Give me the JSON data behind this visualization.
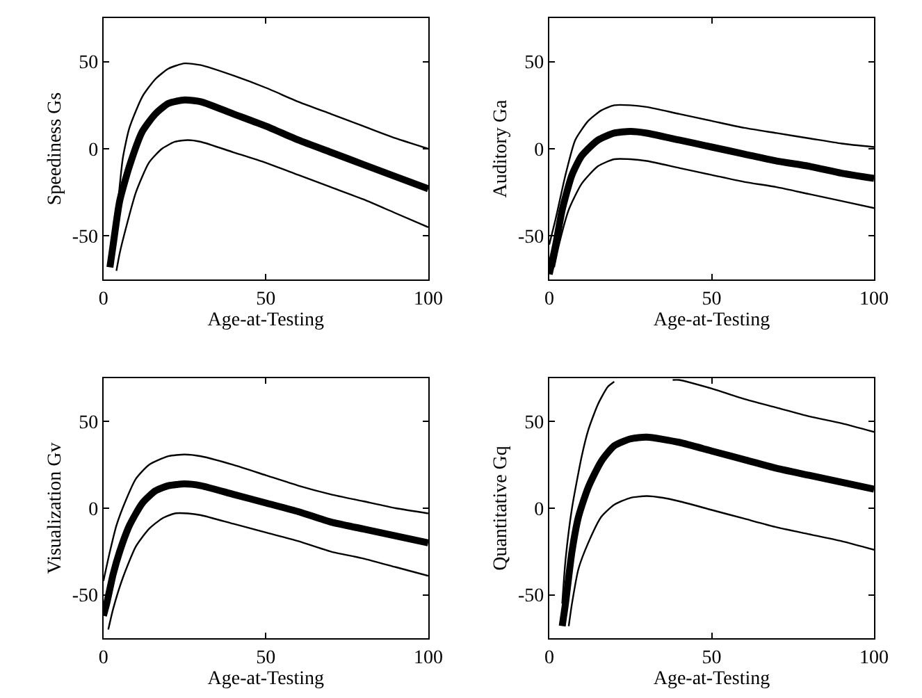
{
  "chart_data": [
    {
      "type": "line",
      "xlabel": "Age-at-Testing",
      "ylabel": "Speediness Gs",
      "xlim": [
        0,
        100
      ],
      "ylim": [
        -75,
        75
      ],
      "xticks": [
        0,
        50,
        100
      ],
      "yticks": [
        -50,
        0,
        50
      ],
      "series": [
        {
          "color": "#000000",
          "x": [
            2,
            3,
            5,
            8,
            12,
            16,
            20,
            25,
            30,
            40,
            50,
            60,
            70,
            80,
            90,
            100
          ],
          "values": [
            -68,
            -55,
            -30,
            -10,
            10,
            20,
            26,
            28,
            27,
            20,
            13,
            5,
            -2,
            -9,
            -16,
            -23
          ]
        },
        {
          "color": "#000000",
          "x": [
            2.5,
            4,
            6,
            8,
            12,
            16,
            20,
            25,
            30,
            40,
            50,
            60,
            70,
            80,
            90,
            100
          ],
          "values": [
            -65,
            -40,
            -5,
            12,
            30,
            40,
            46,
            49,
            48,
            42,
            35,
            27,
            20,
            13,
            6,
            0
          ]
        },
        {
          "color": "#000000",
          "x": [
            4,
            5,
            7,
            10,
            14,
            18,
            22,
            26,
            30,
            40,
            50,
            60,
            70,
            80,
            90,
            100
          ],
          "values": [
            -70,
            -60,
            -45,
            -25,
            -8,
            0,
            4,
            5,
            4,
            -2,
            -8,
            -15,
            -22,
            -29,
            -37,
            -45
          ]
        }
      ]
    },
    {
      "type": "line",
      "xlabel": "Age-at-Testing",
      "ylabel": "Auditory Ga",
      "xlim": [
        0,
        100
      ],
      "ylim": [
        -75,
        75
      ],
      "xticks": [
        0,
        50,
        100
      ],
      "yticks": [
        -50,
        0,
        50
      ],
      "series": [
        {
          "color": "#000000",
          "x": [
            0,
            2,
            4,
            7,
            10,
            15,
            20,
            25,
            30,
            40,
            50,
            60,
            70,
            80,
            90,
            100
          ],
          "values": [
            -72,
            -55,
            -35,
            -15,
            -4,
            5,
            9,
            10,
            9,
            5,
            1,
            -3,
            -7,
            -10,
            -14,
            -17
          ]
        },
        {
          "color": "#000000",
          "x": [
            0,
            2,
            5,
            8,
            12,
            16,
            20,
            25,
            30,
            40,
            50,
            60,
            70,
            80,
            90,
            100
          ],
          "values": [
            -55,
            -40,
            -15,
            5,
            16,
            22,
            25,
            25,
            24,
            20,
            16,
            12,
            9,
            6,
            3,
            1
          ]
        },
        {
          "color": "#000000",
          "x": [
            1.5,
            3,
            6,
            10,
            15,
            20,
            25,
            30,
            40,
            50,
            60,
            70,
            80,
            90,
            100
          ],
          "values": [
            -68,
            -55,
            -35,
            -20,
            -10,
            -6,
            -6,
            -7,
            -11,
            -15,
            -19,
            -22,
            -26,
            -30,
            -34
          ]
        }
      ]
    },
    {
      "type": "line",
      "xlabel": "Age-at-Testing",
      "ylabel": "Visualization Gv",
      "xlim": [
        0,
        100
      ],
      "ylim": [
        -75,
        75
      ],
      "xticks": [
        0,
        50,
        100
      ],
      "yticks": [
        -50,
        0,
        50
      ],
      "series": [
        {
          "color": "#000000",
          "x": [
            0,
            1,
            3,
            5,
            8,
            12,
            16,
            20,
            25,
            30,
            40,
            50,
            60,
            70,
            80,
            90,
            100
          ],
          "values": [
            -62,
            -55,
            -38,
            -25,
            -10,
            3,
            10,
            13,
            14,
            13,
            8,
            3,
            -2,
            -8,
            -12,
            -16,
            -20
          ]
        },
        {
          "color": "#000000",
          "x": [
            0,
            2,
            4,
            7,
            10,
            14,
            20,
            25,
            30,
            40,
            50,
            60,
            70,
            80,
            90,
            100
          ],
          "values": [
            -42,
            -25,
            -10,
            5,
            17,
            25,
            30,
            31,
            30,
            25,
            19,
            13,
            8,
            4,
            0,
            -3
          ]
        },
        {
          "color": "#000000",
          "x": [
            1.5,
            3,
            6,
            10,
            14,
            18,
            22,
            26,
            30,
            40,
            50,
            60,
            70,
            80,
            90,
            100
          ],
          "values": [
            -70,
            -58,
            -40,
            -22,
            -12,
            -6,
            -3,
            -3,
            -4,
            -9,
            -14,
            -19,
            -25,
            -29,
            -34,
            -39
          ]
        }
      ]
    },
    {
      "type": "line",
      "xlabel": "Age-at-Testing",
      "ylabel": "Quantitative Gq",
      "xlim": [
        0,
        100
      ],
      "ylim": [
        -75,
        75
      ],
      "xticks": [
        0,
        50,
        100
      ],
      "yticks": [
        -50,
        0,
        50
      ],
      "series": [
        {
          "color": "#000000",
          "x": [
            4,
            5,
            7,
            9,
            12,
            16,
            20,
            25,
            30,
            40,
            50,
            60,
            70,
            80,
            90,
            100
          ],
          "values": [
            -68,
            -55,
            -25,
            -5,
            12,
            27,
            36,
            40,
            41,
            38,
            33,
            28,
            23,
            19,
            15,
            11
          ]
        },
        {
          "color": "#000000",
          "x": [
            4,
            5,
            7,
            10,
            12,
            15,
            18,
            20,
            29,
            38,
            40,
            50,
            60,
            70,
            80,
            90,
            100
          ],
          "values": [
            -55,
            -30,
            0,
            30,
            45,
            60,
            70,
            73,
            null,
            74,
            74,
            69,
            63,
            58,
            53,
            49,
            44
          ]
        },
        {
          "color": "#000000",
          "x": [
            6,
            7,
            9,
            12,
            16,
            20,
            25,
            30,
            35,
            40,
            50,
            60,
            70,
            80,
            90,
            100
          ],
          "values": [
            -68,
            -55,
            -35,
            -20,
            -5,
            2,
            6,
            7,
            6,
            4,
            -1,
            -6,
            -11,
            -15,
            -19,
            -24
          ]
        }
      ]
    }
  ]
}
